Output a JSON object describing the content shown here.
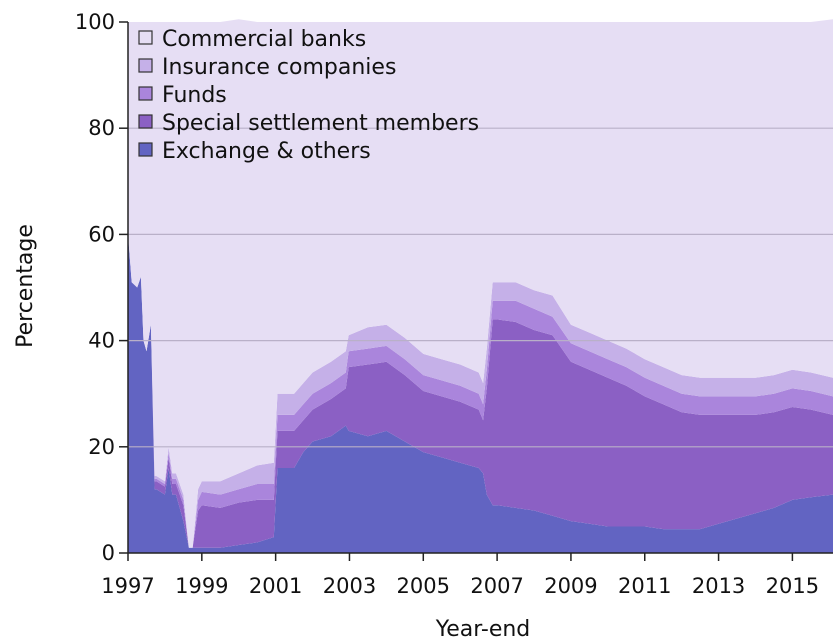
{
  "chart_data": {
    "type": "area",
    "stacked": true,
    "xlabel": "Year-end",
    "ylabel": "Percentage",
    "ylim": [
      0,
      100
    ],
    "yticks": [
      0,
      20,
      40,
      60,
      80,
      100
    ],
    "xlim": [
      1997,
      2016.1
    ],
    "xticks": [
      1997,
      1999,
      2001,
      2003,
      2005,
      2007,
      2009,
      2011,
      2013,
      2015
    ],
    "grid": "horizontal",
    "legend_position": "top-left",
    "x": [
      1997.0,
      1997.1,
      1997.25,
      1997.35,
      1997.42,
      1997.5,
      1997.62,
      1997.72,
      1997.77,
      1998.0,
      1998.1,
      1998.2,
      1998.3,
      1998.5,
      1998.65,
      1998.75,
      1998.9,
      1999.0,
      1999.5,
      2000.0,
      2000.5,
      2000.95,
      2001.05,
      2001.1,
      2001.5,
      2001.75,
      2002.0,
      2002.5,
      2002.9,
      2002.98,
      2003.5,
      2004.0,
      2004.5,
      2005.0,
      2005.5,
      2006.0,
      2006.5,
      2006.62,
      2006.72,
      2006.88,
      2007.0,
      2007.5,
      2008.0,
      2008.5,
      2009.0,
      2009.5,
      2010.0,
      2010.5,
      2011.0,
      2011.5,
      2012.0,
      2012.5,
      2013.0,
      2013.5,
      2014.0,
      2014.5,
      2015.0,
      2015.5,
      2016.1
    ],
    "series": [
      {
        "name": "Exchange & others",
        "color": "#6264c2",
        "values": [
          60,
          51,
          50,
          52,
          40,
          38,
          43,
          12,
          12,
          11,
          16,
          11,
          11,
          6,
          1,
          1,
          1,
          1,
          1,
          1.5,
          2,
          3,
          16,
          16,
          16,
          19,
          21,
          22,
          24,
          23,
          22,
          23,
          21,
          19,
          18,
          17,
          16,
          15,
          11,
          9,
          9,
          8.5,
          8,
          7,
          6,
          5.5,
          5,
          5,
          5,
          4.5,
          4.5,
          4.5,
          5.5,
          6.5,
          7.5,
          8.5,
          10,
          10.5,
          11
        ]
      },
      {
        "name": "Special settlement members",
        "color": "#8b60c4",
        "values": [
          0,
          0,
          0,
          0,
          0,
          0,
          0,
          1.5,
          1.5,
          1.5,
          2,
          2,
          2,
          3,
          0,
          0,
          7,
          8,
          7.5,
          8,
          8,
          7,
          7,
          7,
          7,
          6,
          6,
          7,
          7,
          12,
          13.5,
          13,
          12.5,
          11.5,
          11.5,
          11.5,
          11,
          10,
          20,
          35,
          35,
          35,
          34,
          34,
          30,
          29,
          28,
          26.5,
          24.5,
          23.5,
          22,
          21.5,
          20.5,
          19.5,
          18.5,
          18,
          17.5,
          16.5,
          15
        ]
      },
      {
        "name": "Funds",
        "color": "#aa85dc",
        "values": [
          0,
          0,
          0,
          0,
          0,
          0,
          0,
          0.5,
          0.5,
          0.5,
          1,
          1,
          1,
          1,
          0,
          0,
          2,
          2.5,
          2.5,
          2.5,
          3,
          3,
          3,
          3,
          3,
          3,
          3,
          3,
          3,
          3,
          3,
          3,
          3,
          3,
          3,
          3,
          3,
          3,
          3.5,
          3.5,
          3.5,
          4,
          4,
          3.5,
          3.5,
          3.5,
          3.5,
          3.5,
          3.5,
          3.5,
          3.5,
          3.5,
          3.5,
          3.5,
          3.5,
          3.5,
          3.5,
          3.5,
          3.5
        ]
      },
      {
        "name": "Insurance companies",
        "color": "#c5b0e8",
        "values": [
          0,
          0,
          0,
          0,
          0,
          0,
          0,
          0.5,
          0.5,
          0.5,
          1,
          1,
          1,
          1,
          0,
          0,
          2,
          2,
          2.5,
          3,
          3.5,
          4,
          4,
          4,
          4,
          4,
          4,
          4,
          4,
          3,
          4,
          4,
          4,
          4,
          4,
          4,
          4,
          4,
          4,
          3.5,
          3.5,
          3.5,
          3.5,
          4,
          3.5,
          3.5,
          3.5,
          3.5,
          3.5,
          3.5,
          3.5,
          3.5,
          3.5,
          3.5,
          3.5,
          3.5,
          3.5,
          3.5,
          3.5
        ]
      },
      {
        "name": "Commercial banks",
        "color": "#e6def4",
        "values": [
          40,
          49,
          50,
          48,
          60,
          62,
          57,
          85.5,
          85.5,
          86.5,
          80,
          85,
          85,
          89,
          99,
          99,
          88,
          86.5,
          86.5,
          85.5,
          83.5,
          83,
          70,
          70,
          70,
          68,
          66,
          64,
          62,
          59,
          57.5,
          57,
          59.5,
          62.5,
          63.5,
          64.5,
          66,
          68,
          61.5,
          49,
          49,
          49,
          50.5,
          51.5,
          57,
          58.5,
          60,
          61.5,
          63.5,
          65,
          66.5,
          67,
          67,
          67,
          67,
          66.5,
          65.5,
          66,
          67.5
        ]
      }
    ]
  }
}
